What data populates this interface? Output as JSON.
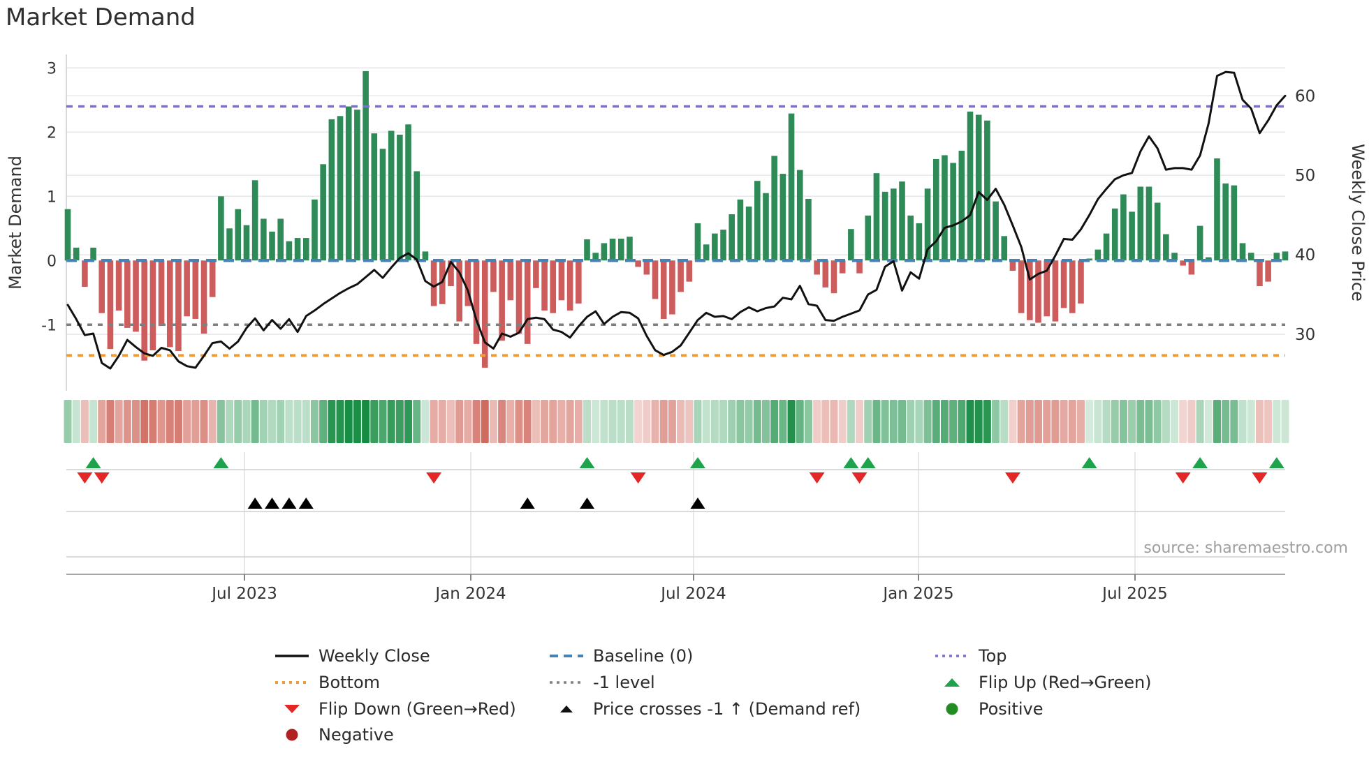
{
  "title": "Market Demand",
  "source": "source: sharemaestro.com",
  "chart_data": {
    "type": [
      "bar",
      "line"
    ],
    "n_weeks": 144,
    "x_ticks": [
      {
        "label": "Jul 2023",
        "week": 20.76
      },
      {
        "label": "Jan 2024",
        "week": 47.34
      },
      {
        "label": "Jul 2024",
        "week": 73.51
      },
      {
        "label": "Jan 2025",
        "week": 99.93
      },
      {
        "label": "Jul 2025",
        "week": 125.36
      }
    ],
    "left_axis": {
      "label": "Market Demand",
      "ticks": [
        -1,
        0,
        1,
        2,
        3
      ],
      "range": [
        -2.03,
        3.21
      ]
    },
    "right_axis": {
      "label": "Weekly Close Price",
      "ticks": [
        30,
        40,
        50,
        60
      ],
      "range": [
        22.9,
        65.2
      ]
    },
    "levels": {
      "baseline": 0,
      "top": 2.4,
      "bottom": -1.48,
      "minus_one": -1
    },
    "series": [
      {
        "name": "Market Demand",
        "type": "bar",
        "axis": "left",
        "values": [
          0.8,
          0.2,
          -0.41,
          0.2,
          -0.82,
          -1.38,
          -0.78,
          -1.05,
          -1.11,
          -1.56,
          -1.4,
          -1.02,
          -1.35,
          -1.41,
          -0.87,
          -0.91,
          -1.14,
          -0.57,
          1.0,
          0.5,
          0.8,
          0.55,
          1.25,
          0.65,
          0.45,
          0.65,
          0.3,
          0.35,
          0.35,
          0.95,
          1.5,
          2.2,
          2.25,
          2.4,
          2.35,
          2.95,
          1.98,
          1.74,
          2.02,
          1.96,
          2.12,
          1.39,
          0.14,
          -0.71,
          -0.68,
          -0.4,
          -0.95,
          -0.71,
          -1.3,
          -1.67,
          -0.49,
          -1.25,
          -0.62,
          -1.14,
          -1.3,
          -0.43,
          -0.78,
          -0.82,
          -0.62,
          -0.78,
          -0.67,
          0.33,
          0.12,
          0.27,
          0.34,
          0.34,
          0.37,
          -0.1,
          -0.22,
          -0.6,
          -0.91,
          -0.84,
          -0.49,
          -0.33,
          0.58,
          0.25,
          0.42,
          0.48,
          0.72,
          0.95,
          0.84,
          1.24,
          1.05,
          1.63,
          1.35,
          2.29,
          1.41,
          0.96,
          -0.22,
          -0.42,
          -0.51,
          -0.2,
          0.49,
          -0.2,
          0.7,
          1.36,
          1.07,
          1.12,
          1.23,
          0.7,
          0.58,
          1.12,
          1.58,
          1.64,
          1.52,
          1.71,
          2.32,
          2.27,
          2.18,
          0.92,
          0.38,
          -0.16,
          -0.82,
          -0.93,
          -0.97,
          -0.87,
          -0.95,
          -0.74,
          -0.82,
          -0.67,
          0.03,
          0.17,
          0.42,
          0.81,
          1.03,
          0.76,
          1.15,
          1.15,
          0.9,
          0.41,
          0.12,
          -0.08,
          -0.22,
          0.54,
          0.05,
          1.59,
          1.2,
          1.17,
          0.27,
          0.12,
          -0.4,
          -0.33,
          0.12,
          0.14
        ]
      },
      {
        "name": "Weekly Close",
        "type": "line",
        "axis": "right",
        "values": [
          33.7,
          31.9,
          29.9,
          30.1,
          26.4,
          25.7,
          27.3,
          29.3,
          28.4,
          27.6,
          27.3,
          28.3,
          28.0,
          26.6,
          26.0,
          25.8,
          27.3,
          28.9,
          29.1,
          28.2,
          29.1,
          30.8,
          32.0,
          30.5,
          31.8,
          30.7,
          31.9,
          30.3,
          32.3,
          33.0,
          33.8,
          34.5,
          35.2,
          35.8,
          36.3,
          37.2,
          38.1,
          37.1,
          38.4,
          39.6,
          40.2,
          39.4,
          36.7,
          36.0,
          36.6,
          39.1,
          37.8,
          35.5,
          31.8,
          29.0,
          28.2,
          30.1,
          29.7,
          30.2,
          31.9,
          32.1,
          31.9,
          30.6,
          30.3,
          29.6,
          31.0,
          32.2,
          32.9,
          31.3,
          32.2,
          32.8,
          32.7,
          32.0,
          29.8,
          28.0,
          27.4,
          27.8,
          28.6,
          30.2,
          31.8,
          32.7,
          32.2,
          32.3,
          31.9,
          32.8,
          33.4,
          32.9,
          33.3,
          33.5,
          34.6,
          34.4,
          36.1,
          33.8,
          33.6,
          31.8,
          31.7,
          32.2,
          32.6,
          33.0,
          35.0,
          35.6,
          38.5,
          39.2,
          35.5,
          37.8,
          37.0,
          40.7,
          41.7,
          43.4,
          43.7,
          44.2,
          45.0,
          47.9,
          46.9,
          48.3,
          46.3,
          43.7,
          41.0,
          36.9,
          37.6,
          38.0,
          39.9,
          42.0,
          41.9,
          43.2,
          45.0,
          47.0,
          48.3,
          49.5,
          50.0,
          50.3,
          53.0,
          54.9,
          53.4,
          50.7,
          50.9,
          50.9,
          50.7,
          52.5,
          56.5,
          62.5,
          63.0,
          62.9,
          59.5,
          58.4,
          55.3,
          56.9,
          58.8,
          60.0
        ]
      }
    ],
    "markers": {
      "flip_up_rule": "week where bar turns negative-to-positive",
      "flip_down_rule": "week where bar turns positive-to-negative",
      "price_cross_up_weeks": [
        22,
        24,
        26,
        28,
        54,
        61,
        74
      ]
    },
    "heatmap": {
      "description": "weekly strip shaded by demand value",
      "positive_color": "#168a43",
      "negative_color": "#c0392b"
    }
  },
  "legend": {
    "items": [
      {
        "label": "Weekly Close",
        "glyph": "line-black",
        "col": 0,
        "row": 0
      },
      {
        "label": "Bottom",
        "glyph": "dotted-orange",
        "col": 0,
        "row": 1
      },
      {
        "label": "Flip Down (Green→Red)",
        "glyph": "triangle-down-red",
        "col": 0,
        "row": 2
      },
      {
        "label": "Negative",
        "glyph": "circle-darkred",
        "col": 0,
        "row": 3
      },
      {
        "label": "Baseline (0)",
        "glyph": "dashed-blue",
        "col": 1,
        "row": 0
      },
      {
        "label": "-1 level",
        "glyph": "dotted-gray",
        "col": 1,
        "row": 1
      },
      {
        "label": "Price crosses -1 ↑ (Demand ref)",
        "glyph": "triangle-up-black",
        "col": 1,
        "row": 2
      },
      {
        "label": "Top",
        "glyph": "dotted-purple",
        "col": 2,
        "row": 0
      },
      {
        "label": "Flip Up (Red→Green)",
        "glyph": "triangle-up-green",
        "col": 2,
        "row": 1
      },
      {
        "label": "Positive",
        "glyph": "circle-green",
        "col": 2,
        "row": 2
      }
    ]
  },
  "colors": {
    "bar_positive": "#2e8b57",
    "bar_negative": "#cd5c5c",
    "price_line": "#111111",
    "baseline": "#4682b4",
    "top_level": "#7a6fd8",
    "bottom_level": "#f29c38",
    "minus_one_level": "#808080",
    "flip_up": "#1ea34c",
    "flip_down": "#e32726",
    "positive_dot": "#228b22",
    "negative_dot": "#b22222",
    "cross_marker": "#000000",
    "grid": "#e7e7ef",
    "panel_line": "#cfcfcf",
    "text": "#333333",
    "muted_text": "#9e9e9e"
  }
}
